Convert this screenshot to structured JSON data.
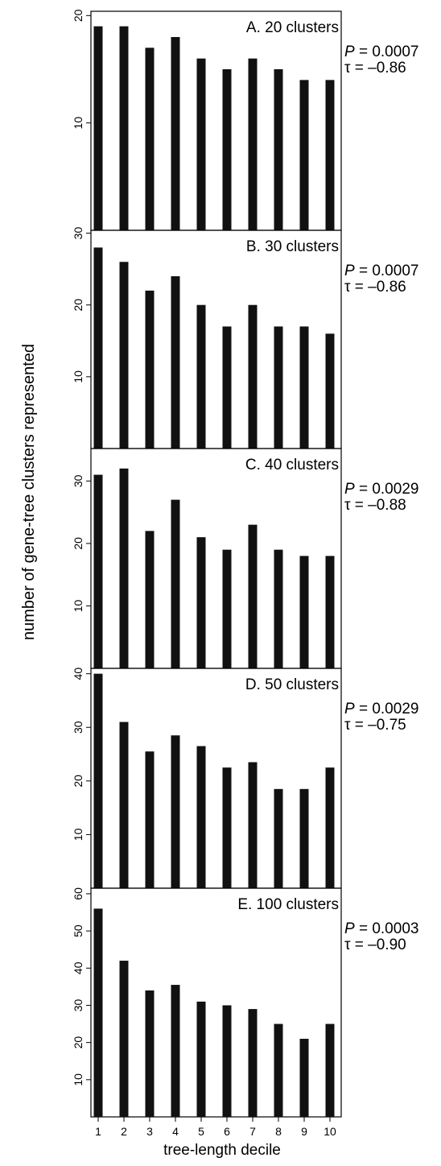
{
  "chart_data": {
    "type": "bar",
    "ylabel": "number of gene-tree clusters represented",
    "xlabel": "tree-length decile",
    "categories": [
      "1",
      "2",
      "3",
      "4",
      "5",
      "6",
      "7",
      "8",
      "9",
      "10"
    ],
    "panels": [
      {
        "title": "A. 20 clusters",
        "stat_p_symbol": "P",
        "stat_p": " = 0.0007",
        "stat_tau": "τ = –0.86",
        "ylim": [
          0,
          20.4
        ],
        "yticks": [
          10,
          20
        ],
        "values": [
          19,
          19,
          17,
          18,
          16,
          15,
          16,
          15,
          14,
          14
        ]
      },
      {
        "title": "B. 30 clusters",
        "stat_p_symbol": "P",
        "stat_p": " = 0.0007",
        "stat_tau": "τ = –0.86",
        "ylim": [
          0,
          30.4
        ],
        "yticks": [
          10,
          20,
          30
        ],
        "values": [
          28,
          26,
          22,
          24,
          20,
          17,
          20,
          17,
          17,
          16
        ]
      },
      {
        "title": "C. 40 clusters",
        "stat_p_symbol": "P",
        "stat_p": " = 0.0029",
        "stat_tau": "τ = –0.88",
        "ylim": [
          0,
          35.2
        ],
        "yticks": [
          10,
          20,
          30
        ],
        "values": [
          31,
          32,
          22,
          27,
          21,
          19,
          23,
          19,
          18,
          18
        ]
      },
      {
        "title": "D. 50 clusters",
        "stat_p_symbol": "P",
        "stat_p": " = 0.0029",
        "stat_tau": "τ = –0.75",
        "ylim": [
          0,
          41
        ],
        "yticks": [
          10,
          20,
          30,
          40
        ],
        "values": [
          40,
          31,
          25.5,
          28.5,
          26.5,
          22.5,
          23.5,
          18.5,
          18.5,
          22.5
        ]
      },
      {
        "title": "E. 100 clusters",
        "stat_p_symbol": "P",
        "stat_p": " = 0.0003",
        "stat_tau": "τ = –0.90",
        "ylim": [
          0,
          61.5
        ],
        "yticks": [
          10,
          20,
          30,
          40,
          50,
          60
        ],
        "values": [
          56,
          42,
          34,
          35.5,
          31,
          30,
          29,
          25,
          21,
          25
        ]
      }
    ]
  }
}
